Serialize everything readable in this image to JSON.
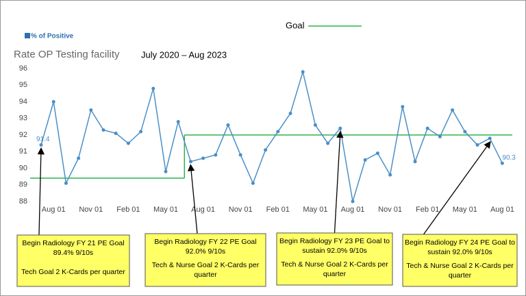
{
  "chart_data": {
    "type": "line",
    "title": "Rate OP Testing facility",
    "subtitle": "July 2020 – Aug 2023",
    "categories": [
      null,
      "Aug 01",
      null,
      null,
      "Nov 01",
      null,
      null,
      "Feb 01",
      null,
      null,
      "May 01",
      null,
      null,
      "Aug 01",
      null,
      null,
      "Nov 01",
      null,
      null,
      "Feb 01",
      null,
      null,
      "May 01",
      null,
      null,
      "Aug 01",
      null,
      null,
      "Nov 01",
      null,
      null,
      "Feb 01",
      null,
      null,
      "May 01",
      null,
      null,
      "Aug 01"
    ],
    "series": [
      {
        "name": "% of Positive",
        "color": "#4a8fc7",
        "values": [
          91.4,
          94.0,
          89.1,
          90.6,
          93.5,
          92.3,
          92.1,
          91.5,
          92.2,
          94.8,
          89.8,
          92.8,
          90.4,
          90.6,
          90.8,
          92.6,
          90.8,
          89.1,
          91.1,
          92.2,
          93.3,
          95.8,
          92.6,
          91.5,
          92.4,
          88.0,
          90.5,
          90.9,
          89.6,
          93.7,
          90.4,
          92.4,
          91.9,
          93.5,
          92.2,
          91.4,
          91.8,
          90.3
        ]
      },
      {
        "name": "Goal",
        "color": "#2db34a",
        "values": [
          89.4,
          89.4,
          89.4,
          89.4,
          89.4,
          89.4,
          89.4,
          89.4,
          89.4,
          89.4,
          89.4,
          89.4,
          92.0,
          92.0,
          92.0,
          92.0,
          92.0,
          92.0,
          92.0,
          92.0,
          92.0,
          92.0,
          92.0,
          92.0,
          92.0,
          92.0,
          92.0,
          92.0,
          92.0,
          92.0,
          92.0,
          92.0,
          92.0,
          92.0,
          92.0,
          92.0,
          92.0,
          92.0
        ]
      }
    ],
    "ylim": [
      88,
      96
    ],
    "yticks": [
      88,
      89,
      90,
      91,
      92,
      93,
      94,
      95,
      96
    ],
    "grid": false,
    "annotations": [
      {
        "goal": [
          "Begin Radiology FY 21 PE Goal",
          "89.4%  9/10s"
        ],
        "kcards": [
          "Tech Goal 2 K-Cards per quarter"
        ]
      },
      {
        "goal": [
          "Begin Radiology FY 22 PE Goal",
          "92.0%  9/10s"
        ],
        "kcards": [
          "Tech & Nurse Goal 2 K-Cards per",
          "quarter"
        ]
      },
      {
        "goal": [
          "Begin Radiology FY 23 PE Goal to",
          "sustain 92.0%  9/10s"
        ],
        "kcards": [
          "Tech & Nurse Goal 2 K-Cards per",
          "quarter"
        ]
      },
      {
        "goal": [
          "Begin Radiology FY 24 PE Goal to",
          "sustain 92.0%  9/10s"
        ],
        "kcards": [
          "Tech & Nurse Goal 2 K-Cards per",
          "quarter"
        ]
      }
    ]
  }
}
